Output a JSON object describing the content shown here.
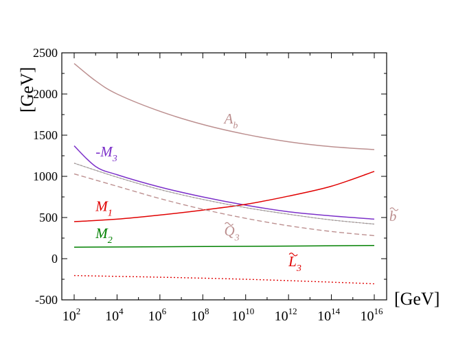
{
  "chart_data": {
    "type": "line",
    "title": "",
    "xlabel": "[GeV]",
    "ylabel": "[GeV]",
    "xscale": "log10",
    "xlim": [
      100.0,
      1e+16
    ],
    "ylim": [
      -500,
      2500
    ],
    "xticks": [
      {
        "value": 100.0,
        "base": "10",
        "exp": "2"
      },
      {
        "value": 10000.0,
        "base": "10",
        "exp": "4"
      },
      {
        "value": 1000000.0,
        "base": "10",
        "exp": "6"
      },
      {
        "value": 100000000.0,
        "base": "10",
        "exp": "8"
      },
      {
        "value": 10000000000.0,
        "base": "10",
        "exp": "10"
      },
      {
        "value": 1000000000000.0,
        "base": "10",
        "exp": "12"
      },
      {
        "value": 100000000000000.0,
        "base": "10",
        "exp": "14"
      },
      {
        "value": 1e+16,
        "base": "10",
        "exp": "16"
      }
    ],
    "yticks": [
      {
        "value": -500,
        "label": "-500"
      },
      {
        "value": 0,
        "label": "0"
      },
      {
        "value": 500,
        "label": "500"
      },
      {
        "value": 1000,
        "label": "1000"
      },
      {
        "value": 1500,
        "label": "1500"
      },
      {
        "value": 2000,
        "label": "2000"
      },
      {
        "value": 2500,
        "label": "2500"
      }
    ],
    "series": [
      {
        "id": "Ab",
        "label": "A",
        "sub": "b",
        "tilde": false,
        "color": "#bc8f8f",
        "style": "solid",
        "x": [
          100.0,
          1000.0,
          10000.0,
          1000000.0,
          100000000.0,
          10000000000.0,
          1000000000000.0,
          100000000000000.0,
          1e+16
        ],
        "y": [
          2370,
          2160,
          2000,
          1790,
          1630,
          1510,
          1420,
          1360,
          1325
        ]
      },
      {
        "id": "M3",
        "label": "-M",
        "sub": "3",
        "tilde": false,
        "color": "#7b2fc9",
        "style": "solid",
        "x": [
          100.0,
          1000.0,
          10000.0,
          1000000.0,
          100000000.0,
          10000000000.0,
          1000000000000.0,
          100000000000000.0,
          1e+16
        ],
        "y": [
          1370,
          1120,
          1020,
          870,
          750,
          650,
          570,
          520,
          480
        ]
      },
      {
        "id": "M1",
        "label": "M",
        "sub": "1",
        "tilde": false,
        "color": "#e00000",
        "style": "solid",
        "x": [
          100.0,
          10000.0,
          1000000.0,
          100000000.0,
          10000000000.0,
          1000000000000.0,
          100000000000000.0,
          1e+16
        ],
        "y": [
          450,
          480,
          530,
          590,
          660,
          760,
          880,
          1060
        ]
      },
      {
        "id": "M2",
        "label": "M",
        "sub": "2",
        "tilde": false,
        "color": "#008000",
        "style": "solid",
        "x": [
          100.0,
          1000000.0,
          10000000000.0,
          1e+16
        ],
        "y": [
          140,
          145,
          150,
          160
        ]
      },
      {
        "id": "bt",
        "label": "b",
        "sub": "",
        "tilde": true,
        "color": "#bc8f8f",
        "style": "dotted",
        "x": [
          100.0,
          10000.0,
          1000000.0,
          100000000.0,
          10000000000.0,
          1000000000000.0,
          100000000000000.0,
          1e+16
        ],
        "y": [
          1160,
          990,
          840,
          720,
          620,
          540,
          470,
          420
        ]
      },
      {
        "id": "Q3",
        "label": "Q",
        "sub": "3",
        "tilde": true,
        "color": "#bc8f8f",
        "style": "dashed",
        "x": [
          100.0,
          10000.0,
          1000000.0,
          100000000.0,
          10000000000.0,
          1000000000000.0,
          100000000000000.0,
          1e+16
        ],
        "y": [
          1030,
          880,
          730,
          600,
          490,
          400,
          330,
          280
        ]
      },
      {
        "id": "L3",
        "label": "L",
        "sub": "3",
        "tilde": true,
        "color": "#e00000",
        "style": "dotted",
        "x": [
          100.0,
          1000000.0,
          10000000000.0,
          100000000000000.0,
          1e+16
        ],
        "y": [
          -205,
          -225,
          -250,
          -285,
          -305
        ]
      }
    ],
    "annotations": [
      {
        "series": "Ab",
        "x": 1000000000.0,
        "y": 1640
      },
      {
        "series": "M3",
        "x": 1000.0,
        "y": 1240
      },
      {
        "series": "M1",
        "x": 1000.0,
        "y": 580
      },
      {
        "series": "M2",
        "x": 1000.0,
        "y": 250
      },
      {
        "series": "bt",
        "x": 5e+16,
        "y": 460
      },
      {
        "series": "Q3",
        "x": 1000000000.0,
        "y": 280
      },
      {
        "series": "L3",
        "x": 1000000000000.0,
        "y": -90
      }
    ]
  }
}
